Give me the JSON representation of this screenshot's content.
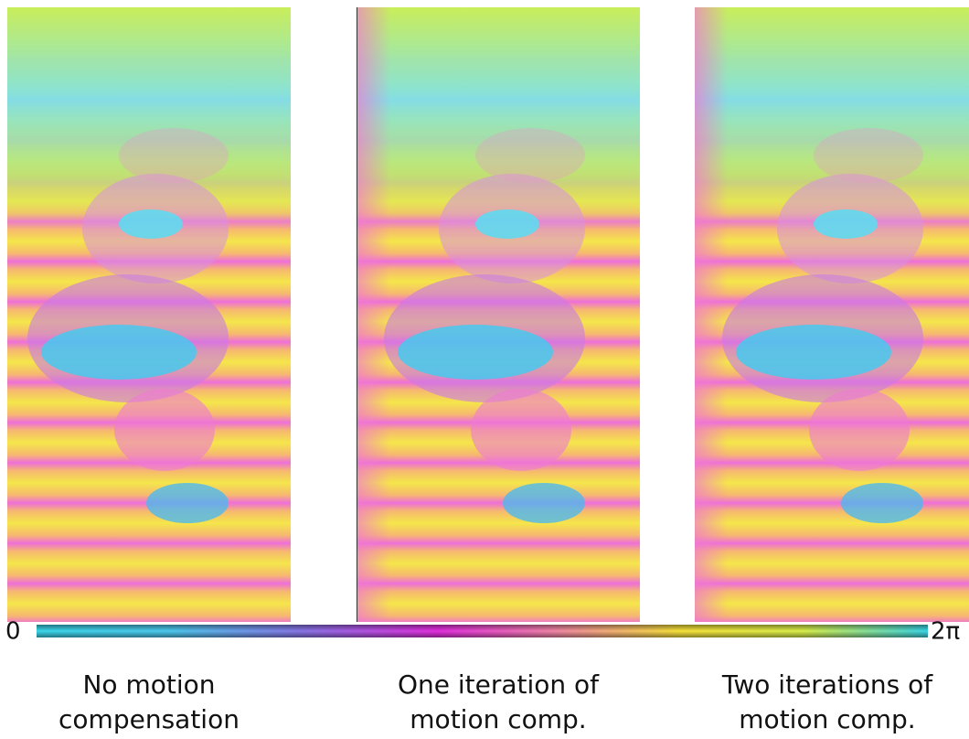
{
  "colorbar": {
    "min_label": "0",
    "max_label": "2π"
  },
  "panels": [
    {
      "caption": [
        "No motion",
        "compensation"
      ]
    },
    {
      "caption": [
        "One iteration of",
        "motion comp."
      ]
    },
    {
      "caption": [
        "Two iterations of",
        "motion comp."
      ]
    }
  ]
}
